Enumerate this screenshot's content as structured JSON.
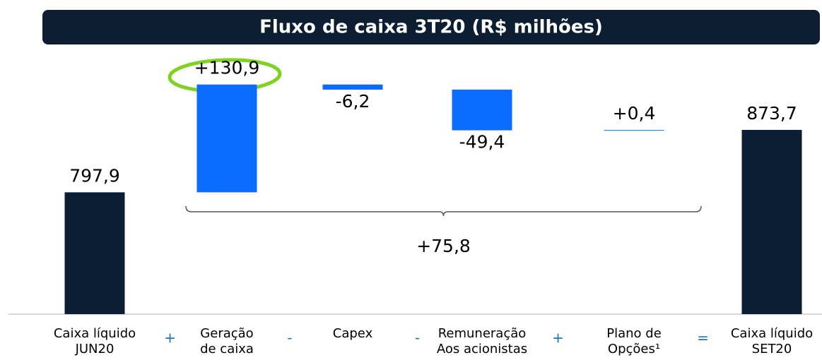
{
  "chart_data": {
    "type": "waterfall",
    "title": "Fluxo de caixa 3T20 (R$ milhões)",
    "categories": [
      [
        "Caixa líquido",
        "JUN20"
      ],
      [
        "Geração",
        "de caixa"
      ],
      [
        "Capex"
      ],
      [
        "Remuneração",
        "Aos acionistas"
      ],
      [
        "Plano de",
        "Opções¹"
      ],
      [
        "Caixa líquido",
        "SET20"
      ]
    ],
    "values": [
      797.9,
      130.9,
      -6.2,
      -49.4,
      0.4,
      873.7
    ],
    "value_labels": [
      "797,9",
      "+130,9",
      "-6,2",
      "-49,4",
      "+0,4",
      "873,7"
    ],
    "totals": [
      true,
      false,
      false,
      false,
      false,
      true
    ],
    "operators": [
      "+",
      "-",
      "-",
      "+",
      "="
    ],
    "annotation": {
      "value": 75.8,
      "label": "+75,8"
    },
    "total_color": "#0b1e33",
    "delta_color": "#0a6cff",
    "ylim": [
      650,
      950
    ]
  }
}
